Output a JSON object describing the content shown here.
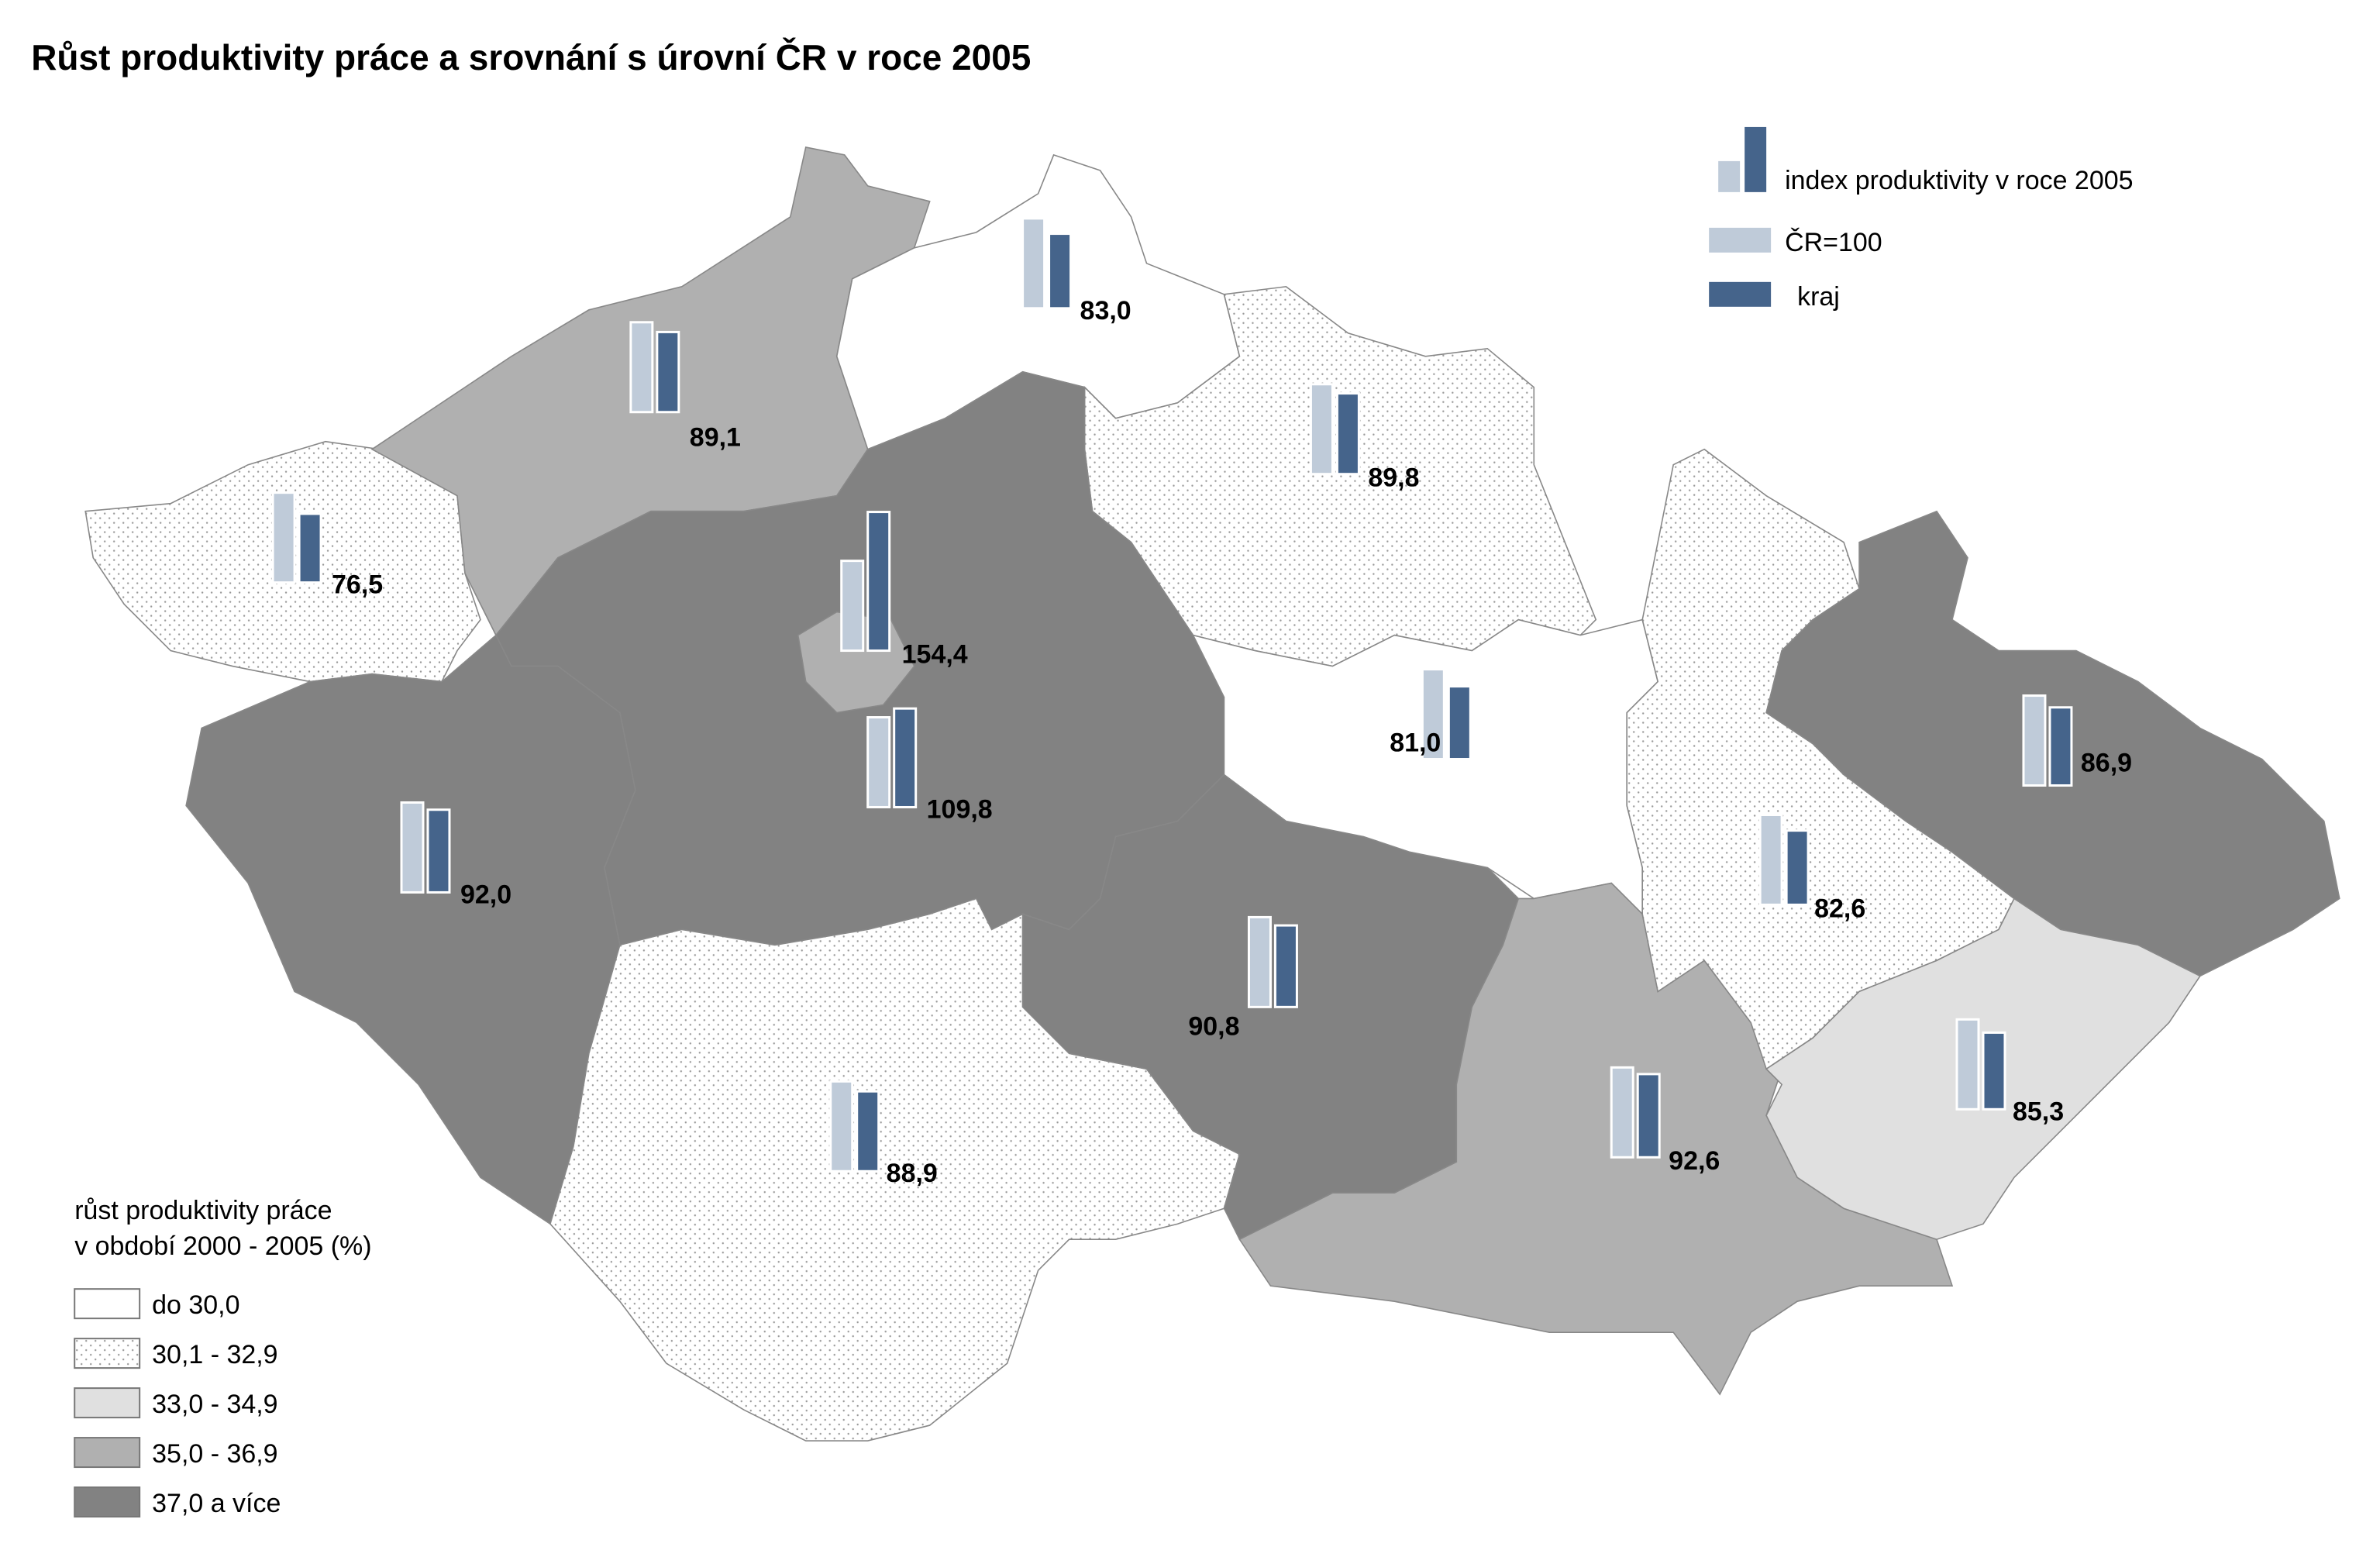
{
  "title": "Růst produktivity práce a srovnání s úrovní ČR v roce 2005",
  "colors": {
    "national_bar": "#bfcbd9",
    "region_bar": "#45648b"
  },
  "bar_legend": {
    "heading": "index produktivity v roce 2005",
    "national": "ČR=100",
    "region": "kraj"
  },
  "class_legend": {
    "title_line1": "růst produktivity práce",
    "title_line2": "v období 2000 - 2005 (%)",
    "classes": [
      {
        "label": "do 30,0",
        "fill": "#ffffff",
        "pattern": false
      },
      {
        "label": "30,1 - 32,9",
        "fill": "#ffffff",
        "pattern": true
      },
      {
        "label": "33,0 - 34,9",
        "fill": "#e0e0e0",
        "pattern": false
      },
      {
        "label": "35,0 - 36,9",
        "fill": "#b0b0b0",
        "pattern": false
      },
      {
        "label": "37,0 a více",
        "fill": "#828282",
        "pattern": false
      }
    ]
  },
  "chart_data": {
    "type": "choropleth-with-bars",
    "national_index": 100,
    "regions": [
      {
        "index": 76.5,
        "label": "76,5",
        "growth_class": 1
      },
      {
        "index": 89.1,
        "label": "89,1",
        "growth_class": 3
      },
      {
        "index": 83.0,
        "label": "83,0",
        "growth_class": 0
      },
      {
        "index": 89.8,
        "label": "89,8",
        "growth_class": 1
      },
      {
        "index": 154.4,
        "label": "154,4",
        "growth_class": 3
      },
      {
        "index": 109.8,
        "label": "109,8",
        "growth_class": 4
      },
      {
        "index": 92.0,
        "label": "92,0",
        "growth_class": 4
      },
      {
        "index": 88.9,
        "label": "88,9",
        "growth_class": 1
      },
      {
        "index": 90.8,
        "label": "90,8",
        "growth_class": 4
      },
      {
        "index": 81.0,
        "label": "81,0",
        "growth_class": 0
      },
      {
        "index": 92.6,
        "label": "92,6",
        "growth_class": 3
      },
      {
        "index": 82.6,
        "label": "82,6",
        "growth_class": 1
      },
      {
        "index": 86.9,
        "label": "86,9",
        "growth_class": 4
      },
      {
        "index": 85.3,
        "label": "85,3",
        "growth_class": 2
      }
    ]
  }
}
